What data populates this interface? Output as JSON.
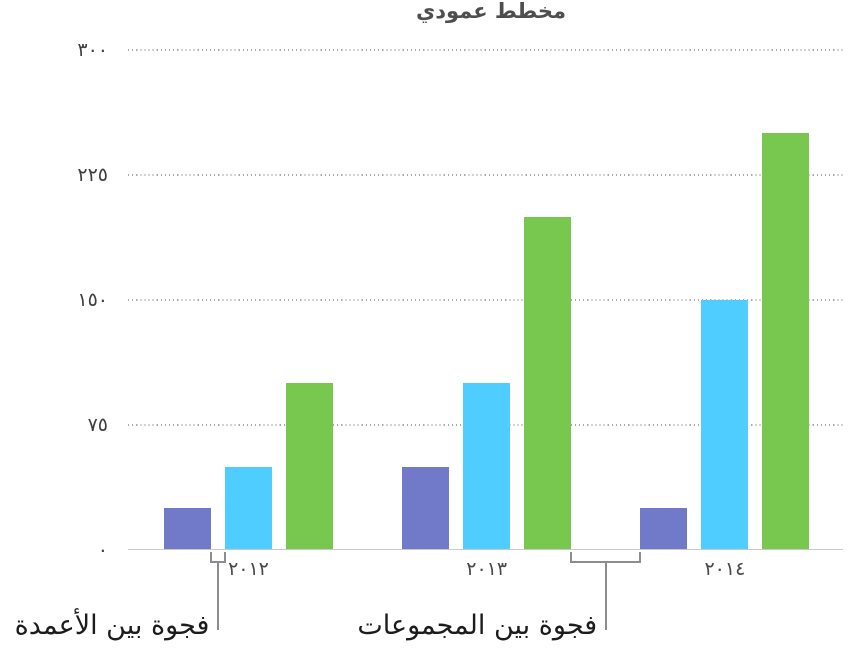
{
  "chart_data": {
    "type": "bar",
    "title": "مخطط عمودي",
    "categories": [
      "٢٠١٢",
      "٢٠١٣",
      "٢٠١٤"
    ],
    "series": [
      {
        "color": "#707AC9",
        "values": [
          25,
          50,
          25
        ]
      },
      {
        "color": "#4FCDFE",
        "values": [
          50,
          100,
          150
        ]
      },
      {
        "color": "#78C84F",
        "values": [
          100,
          200,
          250
        ]
      }
    ],
    "y_axis": {
      "min": 0,
      "max": 300,
      "ticks": [
        {
          "label": "٠",
          "value": 0
        },
        {
          "label": "٧٥",
          "value": 75
        },
        {
          "label": "١٥٠",
          "value": 150
        },
        {
          "label": "٢٢٥",
          "value": 225
        },
        {
          "label": "٣٠٠",
          "value": 300
        }
      ]
    },
    "grid": "horizontal-dotted",
    "legend": "none",
    "background": "#ffffff"
  },
  "annotations": [
    {
      "label": "فجوة بين الأعمدة",
      "points_at": "gap-between-columns-within-first-group"
    },
    {
      "label": "فجوة بين المجموعات",
      "points_at": "gap-between-second-and-third-groups"
    }
  ],
  "colors": {
    "title_text": "#4e4e50",
    "axis_line": "#c9c9c9",
    "gridline": "#a9a9a9",
    "tick_text": "#48484a",
    "callout_line": "#8d8d91",
    "callout_text": "#1c1c1e"
  }
}
